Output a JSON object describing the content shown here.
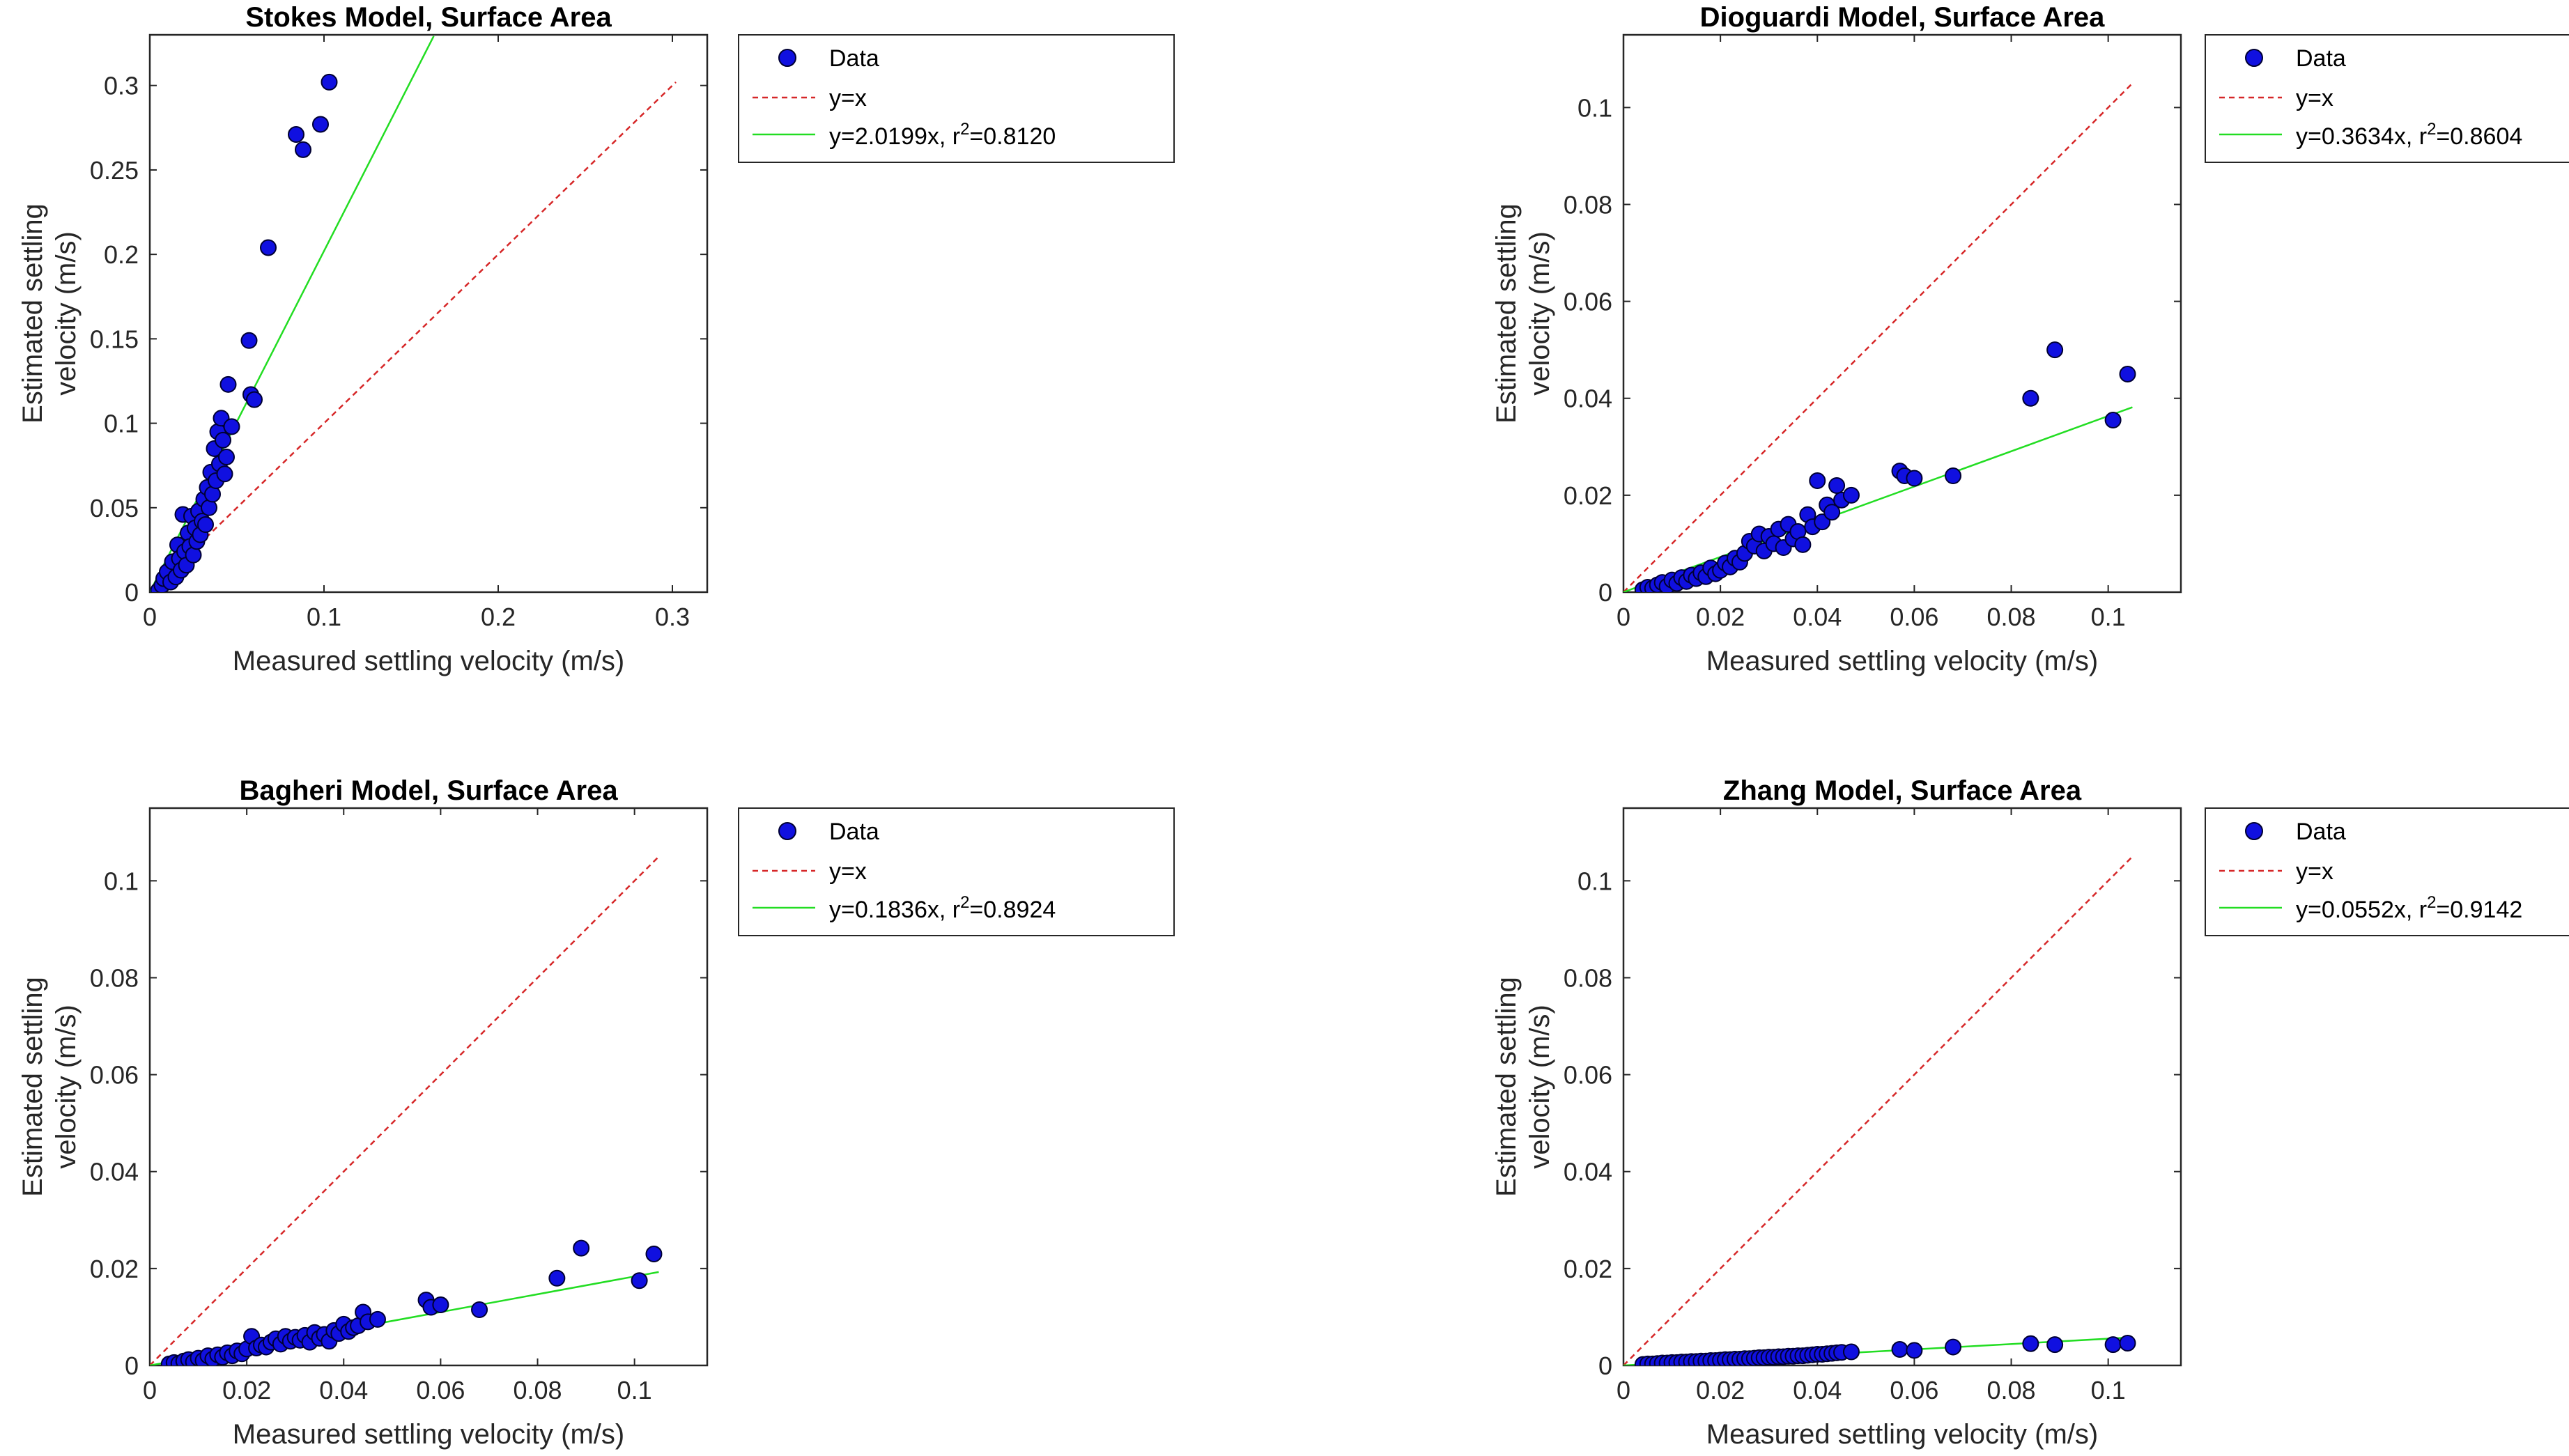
{
  "colors": {
    "marker_fill": "#1010e0",
    "marker_edge": "#000033",
    "identity_line": "#d62728",
    "fit_line": "#22dd22",
    "axis": "#262626"
  },
  "chart_data": [
    {
      "type": "scatter",
      "title": "Stokes Model, Surface Area",
      "xlabel": "Measured settling velocity (m/s)",
      "ylabel_line1": "Estimated settling",
      "ylabel_line2": "velocity (m/s)",
      "xlim": [
        0,
        0.32
      ],
      "ylim": [
        0,
        0.33
      ],
      "xticks": [
        0,
        0.1,
        0.2,
        0.3
      ],
      "xtick_labels": [
        "0",
        "0.1",
        "0.2",
        "0.3"
      ],
      "yticks": [
        0,
        0.05,
        0.1,
        0.15,
        0.2,
        0.25,
        0.3
      ],
      "ytick_labels": [
        "0",
        "0.05",
        "0.1",
        "0.15",
        "0.2",
        "0.25",
        "0.3"
      ],
      "identity_max": 0.302,
      "fit": {
        "slope": 2.0199,
        "x_max": 0.163
      },
      "legend": {
        "position": "outside-right",
        "data_label": "Data",
        "identity_label": "y=x",
        "fit_prefix": "y=2.0199x, r",
        "fit_sup": "2",
        "fit_suffix": "=0.8120"
      },
      "points": [
        [
          0.005,
          0.001
        ],
        [
          0.007,
          0.004
        ],
        [
          0.008,
          0.008
        ],
        [
          0.01,
          0.012
        ],
        [
          0.012,
          0.006
        ],
        [
          0.013,
          0.018
        ],
        [
          0.015,
          0.009
        ],
        [
          0.016,
          0.028
        ],
        [
          0.017,
          0.02
        ],
        [
          0.018,
          0.013
        ],
        [
          0.019,
          0.046
        ],
        [
          0.02,
          0.024
        ],
        [
          0.021,
          0.016
        ],
        [
          0.022,
          0.035
        ],
        [
          0.023,
          0.027
        ],
        [
          0.024,
          0.045
        ],
        [
          0.025,
          0.022
        ],
        [
          0.026,
          0.038
        ],
        [
          0.027,
          0.03
        ],
        [
          0.028,
          0.048
        ],
        [
          0.029,
          0.034
        ],
        [
          0.03,
          0.042
        ],
        [
          0.031,
          0.055
        ],
        [
          0.032,
          0.04
        ],
        [
          0.033,
          0.062
        ],
        [
          0.034,
          0.05
        ],
        [
          0.035,
          0.071
        ],
        [
          0.036,
          0.058
        ],
        [
          0.037,
          0.085
        ],
        [
          0.038,
          0.066
        ],
        [
          0.039,
          0.095
        ],
        [
          0.04,
          0.076
        ],
        [
          0.041,
          0.103
        ],
        [
          0.042,
          0.09
        ],
        [
          0.043,
          0.07
        ],
        [
          0.044,
          0.08
        ],
        [
          0.045,
          0.123
        ],
        [
          0.047,
          0.098
        ],
        [
          0.057,
          0.149
        ],
        [
          0.058,
          0.117
        ],
        [
          0.06,
          0.114
        ],
        [
          0.068,
          0.204
        ],
        [
          0.084,
          0.271
        ],
        [
          0.088,
          0.262
        ],
        [
          0.098,
          0.277
        ],
        [
          0.103,
          0.302
        ]
      ]
    },
    {
      "type": "scatter",
      "title": "Dioguardi Model, Surface Area",
      "xlabel": "Measured settling velocity (m/s)",
      "ylabel_line1": "Estimated settling",
      "ylabel_line2": "velocity (m/s)",
      "xlim": [
        0,
        0.115
      ],
      "ylim": [
        0,
        0.115
      ],
      "xticks": [
        0,
        0.02,
        0.04,
        0.06,
        0.08,
        0.1
      ],
      "xtick_labels": [
        "0",
        "0.02",
        "0.04",
        "0.06",
        "0.08",
        "0.1"
      ],
      "yticks": [
        0,
        0.02,
        0.04,
        0.06,
        0.08,
        0.1
      ],
      "ytick_labels": [
        "0",
        "0.02",
        "0.04",
        "0.06",
        "0.08",
        "0.1"
      ],
      "identity_max": 0.105,
      "fit": {
        "slope": 0.3634,
        "x_max": 0.105
      },
      "legend": {
        "position": "outside-right",
        "data_label": "Data",
        "identity_label": "y=x",
        "fit_prefix": "y=0.3634x, r",
        "fit_sup": "2",
        "fit_suffix": "=0.8604"
      },
      "points": [
        [
          0.004,
          0.0005
        ],
        [
          0.005,
          0.001
        ],
        [
          0.006,
          0.0008
        ],
        [
          0.007,
          0.0015
        ],
        [
          0.008,
          0.002
        ],
        [
          0.009,
          0.0012
        ],
        [
          0.01,
          0.0025
        ],
        [
          0.011,
          0.0018
        ],
        [
          0.012,
          0.003
        ],
        [
          0.013,
          0.0022
        ],
        [
          0.014,
          0.0035
        ],
        [
          0.015,
          0.0028
        ],
        [
          0.016,
          0.004
        ],
        [
          0.017,
          0.0032
        ],
        [
          0.018,
          0.005
        ],
        [
          0.019,
          0.0038
        ],
        [
          0.02,
          0.0045
        ],
        [
          0.021,
          0.006
        ],
        [
          0.022,
          0.0052
        ],
        [
          0.023,
          0.007
        ],
        [
          0.024,
          0.0062
        ],
        [
          0.025,
          0.008
        ],
        [
          0.026,
          0.0105
        ],
        [
          0.027,
          0.0095
        ],
        [
          0.028,
          0.012
        ],
        [
          0.029,
          0.0085
        ],
        [
          0.03,
          0.0115
        ],
        [
          0.031,
          0.01
        ],
        [
          0.032,
          0.013
        ],
        [
          0.033,
          0.0092
        ],
        [
          0.034,
          0.014
        ],
        [
          0.035,
          0.011
        ],
        [
          0.036,
          0.0125
        ],
        [
          0.037,
          0.0098
        ],
        [
          0.038,
          0.016
        ],
        [
          0.039,
          0.0135
        ],
        [
          0.04,
          0.023
        ],
        [
          0.041,
          0.0145
        ],
        [
          0.042,
          0.018
        ],
        [
          0.043,
          0.0165
        ],
        [
          0.044,
          0.022
        ],
        [
          0.045,
          0.019
        ],
        [
          0.047,
          0.02
        ],
        [
          0.057,
          0.025
        ],
        [
          0.058,
          0.024
        ],
        [
          0.06,
          0.0235
        ],
        [
          0.068,
          0.024
        ],
        [
          0.084,
          0.04
        ],
        [
          0.089,
          0.05
        ],
        [
          0.101,
          0.0355
        ],
        [
          0.104,
          0.045
        ]
      ]
    },
    {
      "type": "scatter",
      "title": "Bagheri Model, Surface Area",
      "xlabel": "Measured settling velocity (m/s)",
      "ylabel_line1": "Estimated settling",
      "ylabel_line2": "velocity (m/s)",
      "xlim": [
        0,
        0.115
      ],
      "ylim": [
        0,
        0.115
      ],
      "xticks": [
        0,
        0.02,
        0.04,
        0.06,
        0.08,
        0.1
      ],
      "xtick_labels": [
        "0",
        "0.02",
        "0.04",
        "0.06",
        "0.08",
        "0.1"
      ],
      "yticks": [
        0,
        0.02,
        0.04,
        0.06,
        0.08,
        0.1
      ],
      "ytick_labels": [
        "0",
        "0.02",
        "0.04",
        "0.06",
        "0.08",
        "0.1"
      ],
      "identity_max": 0.105,
      "fit": {
        "slope": 0.1836,
        "x_max": 0.105
      },
      "legend": {
        "position": "outside-right",
        "data_label": "Data",
        "identity_label": "y=x",
        "fit_prefix": "y=0.1836x, r",
        "fit_sup": "2",
        "fit_suffix": "=0.8924"
      },
      "points": [
        [
          0.004,
          0.0003
        ],
        [
          0.005,
          0.0006
        ],
        [
          0.006,
          0.0004
        ],
        [
          0.007,
          0.0009
        ],
        [
          0.008,
          0.0012
        ],
        [
          0.009,
          0.0007
        ],
        [
          0.01,
          0.0015
        ],
        [
          0.011,
          0.001
        ],
        [
          0.012,
          0.002
        ],
        [
          0.013,
          0.0013
        ],
        [
          0.014,
          0.0022
        ],
        [
          0.015,
          0.0017
        ],
        [
          0.016,
          0.0026
        ],
        [
          0.017,
          0.002
        ],
        [
          0.018,
          0.003
        ],
        [
          0.019,
          0.0024
        ],
        [
          0.02,
          0.0034
        ],
        [
          0.021,
          0.006
        ],
        [
          0.022,
          0.0036
        ],
        [
          0.023,
          0.0042
        ],
        [
          0.024,
          0.0038
        ],
        [
          0.025,
          0.0048
        ],
        [
          0.026,
          0.0055
        ],
        [
          0.027,
          0.0044
        ],
        [
          0.028,
          0.006
        ],
        [
          0.029,
          0.005
        ],
        [
          0.03,
          0.0058
        ],
        [
          0.031,
          0.0052
        ],
        [
          0.032,
          0.0062
        ],
        [
          0.033,
          0.0048
        ],
        [
          0.034,
          0.0068
        ],
        [
          0.035,
          0.0056
        ],
        [
          0.036,
          0.0064
        ],
        [
          0.037,
          0.005
        ],
        [
          0.038,
          0.0072
        ],
        [
          0.039,
          0.0066
        ],
        [
          0.04,
          0.0085
        ],
        [
          0.041,
          0.007
        ],
        [
          0.042,
          0.0078
        ],
        [
          0.043,
          0.0082
        ],
        [
          0.044,
          0.011
        ],
        [
          0.045,
          0.009
        ],
        [
          0.047,
          0.0095
        ],
        [
          0.057,
          0.0135
        ],
        [
          0.058,
          0.012
        ],
        [
          0.06,
          0.0125
        ],
        [
          0.068,
          0.0115
        ],
        [
          0.084,
          0.018
        ],
        [
          0.089,
          0.0242
        ],
        [
          0.101,
          0.0175
        ],
        [
          0.104,
          0.023
        ]
      ]
    },
    {
      "type": "scatter",
      "title": "Zhang Model, Surface Area",
      "xlabel": "Measured settling velocity (m/s)",
      "ylabel_line1": "Estimated settling",
      "ylabel_line2": "velocity (m/s)",
      "xlim": [
        0,
        0.115
      ],
      "ylim": [
        0,
        0.115
      ],
      "xticks": [
        0,
        0.02,
        0.04,
        0.06,
        0.08,
        0.1
      ],
      "xtick_labels": [
        "0",
        "0.02",
        "0.04",
        "0.06",
        "0.08",
        "0.1"
      ],
      "yticks": [
        0,
        0.02,
        0.04,
        0.06,
        0.08,
        0.1
      ],
      "ytick_labels": [
        "0",
        "0.02",
        "0.04",
        "0.06",
        "0.08",
        "0.1"
      ],
      "identity_max": 0.105,
      "fit": {
        "slope": 0.0552,
        "x_max": 0.105
      },
      "legend": {
        "position": "outside-right",
        "data_label": "Data",
        "identity_label": "y=x",
        "fit_prefix": "y=0.0552x, r",
        "fit_sup": "2",
        "fit_suffix": "=0.9142"
      },
      "points": [
        [
          0.004,
          0.0002
        ],
        [
          0.005,
          0.0003
        ],
        [
          0.006,
          0.0003
        ],
        [
          0.007,
          0.0004
        ],
        [
          0.008,
          0.0005
        ],
        [
          0.009,
          0.0005
        ],
        [
          0.01,
          0.0006
        ],
        [
          0.011,
          0.0006
        ],
        [
          0.012,
          0.0007
        ],
        [
          0.013,
          0.0007
        ],
        [
          0.014,
          0.0008
        ],
        [
          0.015,
          0.0008
        ],
        [
          0.016,
          0.0009
        ],
        [
          0.017,
          0.0009
        ],
        [
          0.018,
          0.001
        ],
        [
          0.019,
          0.001
        ],
        [
          0.02,
          0.0011
        ],
        [
          0.021,
          0.0012
        ],
        [
          0.022,
          0.0012
        ],
        [
          0.023,
          0.0013
        ],
        [
          0.024,
          0.0013
        ],
        [
          0.025,
          0.0014
        ],
        [
          0.026,
          0.0014
        ],
        [
          0.027,
          0.0015
        ],
        [
          0.028,
          0.0016
        ],
        [
          0.029,
          0.0016
        ],
        [
          0.03,
          0.0017
        ],
        [
          0.031,
          0.0017
        ],
        [
          0.032,
          0.0018
        ],
        [
          0.033,
          0.0018
        ],
        [
          0.034,
          0.0019
        ],
        [
          0.035,
          0.0019
        ],
        [
          0.036,
          0.002
        ],
        [
          0.037,
          0.002
        ],
        [
          0.038,
          0.0021
        ],
        [
          0.039,
          0.0022
        ],
        [
          0.04,
          0.0023
        ],
        [
          0.041,
          0.0023
        ],
        [
          0.042,
          0.0024
        ],
        [
          0.043,
          0.0025
        ],
        [
          0.044,
          0.0026
        ],
        [
          0.045,
          0.0027
        ],
        [
          0.047,
          0.0028
        ],
        [
          0.057,
          0.0033
        ],
        [
          0.06,
          0.0031
        ],
        [
          0.068,
          0.0038
        ],
        [
          0.084,
          0.0045
        ],
        [
          0.089,
          0.0043
        ],
        [
          0.101,
          0.0043
        ],
        [
          0.104,
          0.0046
        ]
      ]
    }
  ]
}
